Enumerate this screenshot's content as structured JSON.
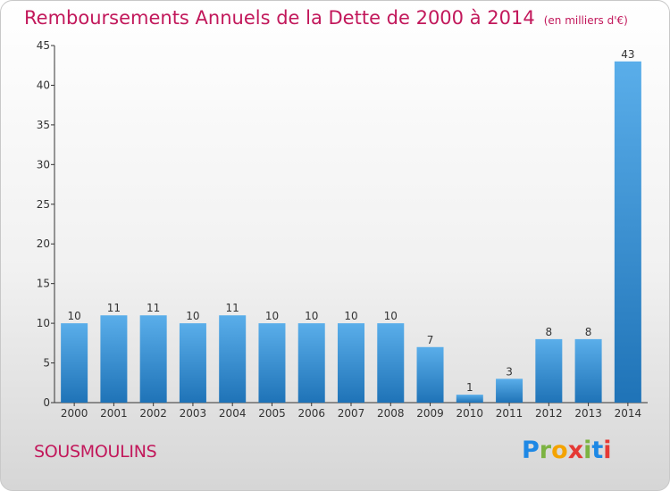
{
  "title": "Remboursements Annuels de la Dette de 2000 à 2014",
  "title_unit": "(en milliers d'€)",
  "commune": "SOUSMOULINS",
  "logo_letters": [
    "P",
    "r",
    "o",
    "x",
    "i",
    "t",
    "i"
  ],
  "logo_colors": [
    "#1e88e5",
    "#7cb342",
    "#f4a300",
    "#e53935",
    "#7cb342",
    "#1e88e5",
    "#e53935"
  ],
  "colors": {
    "title": "#c2185b",
    "bar_light": "#5aaeea",
    "bar_dark": "#1f73b7",
    "axis": "#333333"
  },
  "chart_data": {
    "type": "bar",
    "categories": [
      "2000",
      "2001",
      "2002",
      "2003",
      "2004",
      "2005",
      "2006",
      "2007",
      "2008",
      "2009",
      "2010",
      "2011",
      "2012",
      "2013",
      "2014"
    ],
    "values": [
      10,
      11,
      11,
      10,
      11,
      10,
      10,
      10,
      10,
      7,
      1,
      3,
      8,
      8,
      43
    ],
    "data_labels": [
      "10",
      "11",
      "11",
      "10",
      "11",
      "10",
      "10",
      "10",
      "10",
      "7",
      "1",
      "3",
      "8",
      "8",
      "43"
    ],
    "yticks": [
      0,
      5,
      10,
      15,
      20,
      25,
      30,
      35,
      40,
      45
    ],
    "ylim": [
      0,
      45
    ],
    "grid": false,
    "legend": "none"
  }
}
